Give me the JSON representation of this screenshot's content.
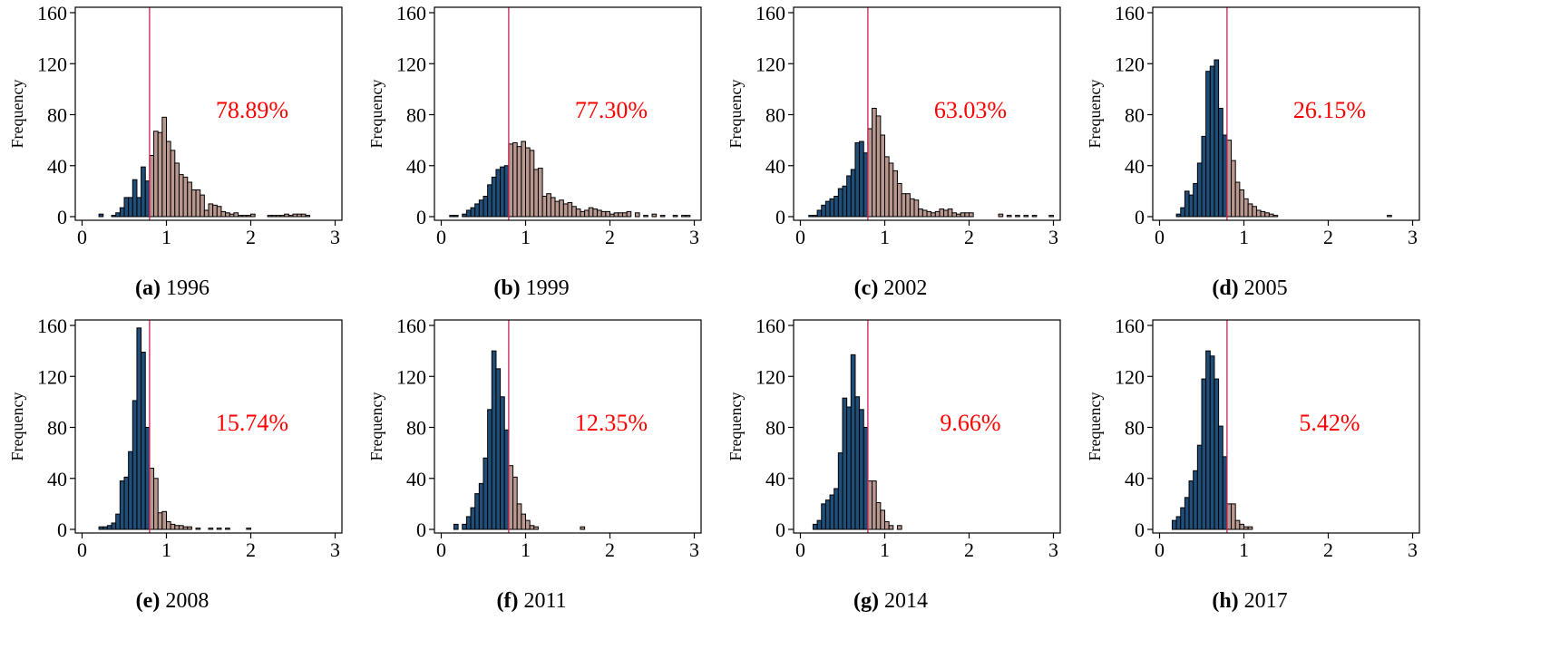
{
  "chart_data": [
    {
      "type": "bar",
      "letter": "(a)",
      "year": "1996",
      "ylabel": "Frequency",
      "annotation": "78.89%",
      "threshold": 0.8,
      "xlim": [
        0,
        3
      ],
      "ylim": [
        0,
        160
      ],
      "xticks": [
        "0",
        "1",
        "2",
        "3"
      ],
      "yticks": [
        "0",
        "40",
        "80",
        "120",
        "160"
      ],
      "bin_width": 0.05,
      "bin_starts": [
        0.2,
        0.35,
        0.4,
        0.45,
        0.5,
        0.55,
        0.6,
        0.65,
        0.7,
        0.75,
        0.8,
        0.85,
        0.9,
        0.95,
        1.0,
        1.05,
        1.1,
        1.15,
        1.2,
        1.25,
        1.3,
        1.35,
        1.4,
        1.45,
        1.5,
        1.55,
        1.6,
        1.65,
        1.7,
        1.75,
        1.8,
        1.85,
        1.9,
        1.95,
        2.0,
        2.2,
        2.25,
        2.3,
        2.35,
        2.4,
        2.45,
        2.5,
        2.55,
        2.6,
        2.65
      ],
      "values": [
        2,
        1,
        3,
        7,
        15,
        15,
        29,
        15,
        39,
        28,
        48,
        67,
        66,
        78,
        59,
        52,
        42,
        33,
        31,
        27,
        21,
        21,
        17,
        5,
        10,
        9,
        8,
        4,
        3,
        2,
        3,
        1,
        1,
        1,
        2,
        1,
        1,
        1,
        1,
        2,
        1,
        2,
        2,
        2,
        1
      ]
    },
    {
      "type": "bar",
      "letter": "(b)",
      "year": "1999",
      "ylabel": "Frequency",
      "annotation": "77.30%",
      "threshold": 0.8,
      "xlim": [
        0,
        3
      ],
      "ylim": [
        0,
        160
      ],
      "xticks": [
        "0",
        "1",
        "2",
        "3"
      ],
      "yticks": [
        "0",
        "40",
        "80",
        "120",
        "160"
      ],
      "bin_width": 0.05,
      "bin_starts": [
        0.1,
        0.15,
        0.25,
        0.3,
        0.35,
        0.4,
        0.45,
        0.5,
        0.55,
        0.6,
        0.65,
        0.7,
        0.75,
        0.8,
        0.85,
        0.9,
        0.95,
        1.0,
        1.05,
        1.1,
        1.15,
        1.2,
        1.25,
        1.3,
        1.35,
        1.4,
        1.45,
        1.5,
        1.55,
        1.6,
        1.65,
        1.7,
        1.75,
        1.8,
        1.85,
        1.9,
        1.95,
        2.0,
        2.05,
        2.1,
        2.15,
        2.2,
        2.3,
        2.4,
        2.5,
        2.6,
        2.75,
        2.85,
        2.9
      ],
      "values": [
        1,
        1,
        2,
        5,
        7,
        10,
        13,
        16,
        25,
        31,
        37,
        39,
        40,
        57,
        58,
        55,
        59,
        54,
        52,
        37,
        38,
        16,
        18,
        15,
        12,
        13,
        10,
        11,
        8,
        6,
        4,
        5,
        7,
        6,
        5,
        4,
        4,
        2,
        3,
        3,
        3,
        4,
        3,
        1,
        2,
        1,
        1,
        1,
        1
      ]
    },
    {
      "type": "bar",
      "letter": "(c)",
      "year": "2002",
      "ylabel": "Frequency",
      "annotation": "63.03%",
      "threshold": 0.8,
      "xlim": [
        0,
        3
      ],
      "ylim": [
        0,
        160
      ],
      "xticks": [
        "0",
        "1",
        "2",
        "3"
      ],
      "yticks": [
        "0",
        "40",
        "80",
        "120",
        "160"
      ],
      "bin_width": 0.05,
      "bin_starts": [
        0.1,
        0.15,
        0.2,
        0.25,
        0.3,
        0.35,
        0.4,
        0.45,
        0.5,
        0.55,
        0.6,
        0.65,
        0.7,
        0.75,
        0.8,
        0.85,
        0.9,
        0.95,
        1.0,
        1.05,
        1.1,
        1.15,
        1.2,
        1.25,
        1.3,
        1.35,
        1.4,
        1.45,
        1.5,
        1.55,
        1.6,
        1.65,
        1.7,
        1.75,
        1.8,
        1.85,
        1.9,
        1.95,
        2.0,
        2.35,
        2.45,
        2.55,
        2.65,
        2.75,
        2.95
      ],
      "values": [
        1,
        1,
        5,
        9,
        12,
        14,
        16,
        22,
        24,
        32,
        37,
        58,
        59,
        50,
        69,
        85,
        79,
        64,
        47,
        42,
        36,
        26,
        18,
        18,
        14,
        13,
        6,
        5,
        4,
        3,
        4,
        6,
        5,
        6,
        3,
        2,
        3,
        3,
        3,
        2,
        1,
        1,
        1,
        1,
        1
      ]
    },
    {
      "type": "bar",
      "letter": "(d)",
      "year": "2005",
      "ylabel": "Frequency",
      "annotation": "26.15%",
      "threshold": 0.8,
      "xlim": [
        0,
        3
      ],
      "ylim": [
        0,
        160
      ],
      "xticks": [
        "0",
        "1",
        "2",
        "3"
      ],
      "yticks": [
        "0",
        "40",
        "80",
        "120",
        "160"
      ],
      "bin_width": 0.05,
      "bin_starts": [
        0.2,
        0.25,
        0.3,
        0.35,
        0.4,
        0.45,
        0.5,
        0.55,
        0.6,
        0.65,
        0.7,
        0.75,
        0.8,
        0.85,
        0.9,
        0.95,
        1.0,
        1.05,
        1.1,
        1.15,
        1.2,
        1.25,
        1.3,
        1.35,
        2.7
      ],
      "values": [
        2,
        7,
        20,
        17,
        26,
        42,
        63,
        114,
        118,
        123,
        85,
        64,
        60,
        44,
        27,
        21,
        14,
        10,
        8,
        5,
        4,
        3,
        2,
        1,
        1
      ]
    },
    {
      "type": "bar",
      "letter": "(e)",
      "year": "2008",
      "ylabel": "Frequency",
      "annotation": "15.74%",
      "threshold": 0.8,
      "xlim": [
        0,
        3
      ],
      "ylim": [
        0,
        160
      ],
      "xticks": [
        "0",
        "1",
        "2",
        "3"
      ],
      "yticks": [
        "0",
        "40",
        "80",
        "120",
        "160"
      ],
      "bin_width": 0.05,
      "bin_starts": [
        0.2,
        0.25,
        0.3,
        0.35,
        0.4,
        0.45,
        0.5,
        0.55,
        0.6,
        0.65,
        0.7,
        0.75,
        0.8,
        0.85,
        0.9,
        0.95,
        1.0,
        1.05,
        1.1,
        1.15,
        1.2,
        1.25,
        1.35,
        1.5,
        1.6,
        1.7,
        1.95
      ],
      "values": [
        2,
        2,
        3,
        5,
        12,
        38,
        41,
        61,
        101,
        158,
        139,
        80,
        48,
        40,
        13,
        14,
        6,
        4,
        3,
        3,
        2,
        2,
        1,
        1,
        1,
        1,
        1
      ]
    },
    {
      "type": "bar",
      "letter": "(f)",
      "year": "2011",
      "ylabel": "Frequency",
      "annotation": "12.35%",
      "threshold": 0.8,
      "xlim": [
        0,
        3
      ],
      "ylim": [
        0,
        160
      ],
      "xticks": [
        "0",
        "1",
        "2",
        "3"
      ],
      "yticks": [
        "0",
        "40",
        "80",
        "120",
        "160"
      ],
      "bin_width": 0.05,
      "bin_starts": [
        0.15,
        0.25,
        0.3,
        0.35,
        0.4,
        0.45,
        0.5,
        0.55,
        0.6,
        0.65,
        0.7,
        0.75,
        0.8,
        0.85,
        0.9,
        0.95,
        1.0,
        1.05,
        1.1,
        1.65
      ],
      "values": [
        4,
        4,
        10,
        17,
        28,
        36,
        56,
        94,
        140,
        126,
        104,
        78,
        50,
        41,
        20,
        12,
        7,
        3,
        2,
        2
      ]
    },
    {
      "type": "bar",
      "letter": "(g)",
      "year": "2014",
      "ylabel": "Frequency",
      "annotation": "9.66%",
      "threshold": 0.8,
      "xlim": [
        0,
        3
      ],
      "ylim": [
        0,
        160
      ],
      "xticks": [
        "0",
        "1",
        "2",
        "3"
      ],
      "yticks": [
        "0",
        "40",
        "80",
        "120",
        "160"
      ],
      "bin_width": 0.05,
      "bin_starts": [
        0.15,
        0.2,
        0.25,
        0.3,
        0.35,
        0.4,
        0.45,
        0.5,
        0.55,
        0.6,
        0.65,
        0.7,
        0.75,
        0.8,
        0.85,
        0.9,
        0.95,
        1.0,
        1.05,
        1.15
      ],
      "values": [
        4,
        7,
        20,
        23,
        27,
        32,
        60,
        103,
        96,
        137,
        104,
        94,
        80,
        38,
        38,
        21,
        15,
        6,
        3,
        3
      ]
    },
    {
      "type": "bar",
      "letter": "(h)",
      "year": "2017",
      "ylabel": "Frequency",
      "annotation": "5.42%",
      "threshold": 0.8,
      "xlim": [
        0,
        3
      ],
      "ylim": [
        0,
        160
      ],
      "xticks": [
        "0",
        "1",
        "2",
        "3"
      ],
      "yticks": [
        "0",
        "40",
        "80",
        "120",
        "160"
      ],
      "bin_width": 0.05,
      "bin_starts": [
        0.15,
        0.2,
        0.25,
        0.3,
        0.35,
        0.4,
        0.45,
        0.5,
        0.55,
        0.6,
        0.65,
        0.7,
        0.75,
        0.8,
        0.85,
        0.9,
        0.95,
        1.0,
        1.05
      ],
      "values": [
        7,
        10,
        17,
        25,
        38,
        46,
        66,
        118,
        140,
        136,
        118,
        81,
        57,
        20,
        20,
        7,
        4,
        2,
        2
      ]
    }
  ],
  "colors": {
    "below_threshold": "#1f4e79",
    "above_threshold": "#b8978f",
    "threshold_line": "#cc2255",
    "annotation": "#ff0000"
  }
}
